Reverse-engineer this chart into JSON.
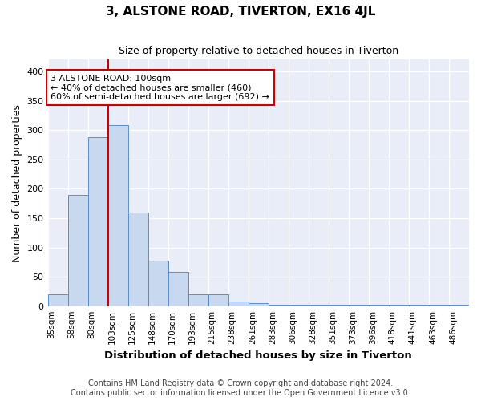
{
  "title": "3, ALSTONE ROAD, TIVERTON, EX16 4JL",
  "subtitle": "Size of property relative to detached houses in Tiverton",
  "xlabel": "Distribution of detached houses by size in Tiverton",
  "ylabel": "Number of detached properties",
  "bin_labels": [
    "35sqm",
    "58sqm",
    "80sqm",
    "103sqm",
    "125sqm",
    "148sqm",
    "170sqm",
    "193sqm",
    "215sqm",
    "238sqm",
    "261sqm",
    "283sqm",
    "306sqm",
    "328sqm",
    "351sqm",
    "373sqm",
    "396sqm",
    "418sqm",
    "441sqm",
    "463sqm",
    "486sqm"
  ],
  "bar_heights": [
    20,
    190,
    288,
    308,
    160,
    78,
    58,
    20,
    20,
    8,
    5,
    2,
    2,
    2,
    2,
    2,
    2,
    2,
    2,
    2,
    2
  ],
  "bar_color": "#c8d9ef",
  "bar_edge_color": "#5b8dc8",
  "background_color": "#e8edf8",
  "grid_color": "#ffffff",
  "property_line_bin": 3,
  "property_line_color": "#cc0000",
  "annotation_text": "3 ALSTONE ROAD: 100sqm\n← 40% of detached houses are smaller (460)\n60% of semi-detached houses are larger (692) →",
  "annotation_box_edgecolor": "#cc0000",
  "annotation_box_facecolor": "#ffffff",
  "ylim": [
    0,
    420
  ],
  "yticks": [
    0,
    50,
    100,
    150,
    200,
    250,
    300,
    350,
    400
  ],
  "title_fontsize": 11,
  "subtitle_fontsize": 9,
  "axis_label_fontsize": 9,
  "tick_fontsize": 7.5,
  "footer_line1": "Contains HM Land Registry data © Crown copyright and database right 2024.",
  "footer_line2": "Contains public sector information licensed under the Open Government Licence v3.0.",
  "footer_fontsize": 7,
  "fig_facecolor": "#ffffff"
}
